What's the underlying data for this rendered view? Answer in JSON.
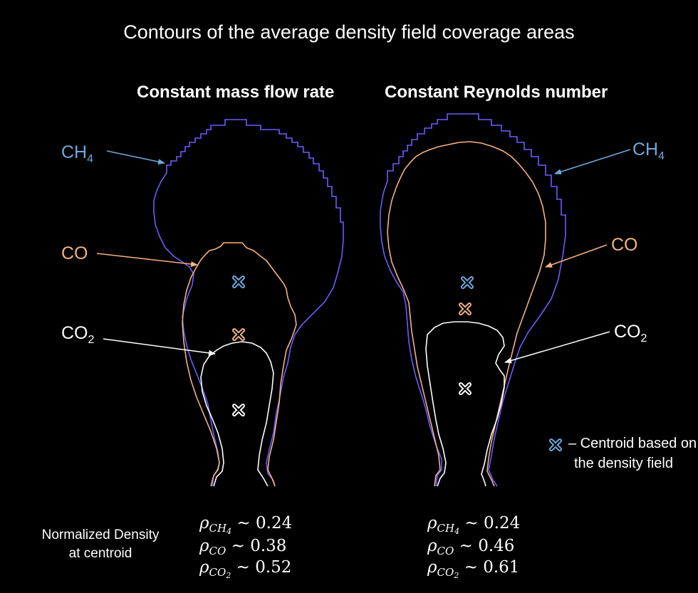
{
  "title": "Contours of the average density field coverage areas",
  "panels": [
    {
      "title": "Constant mass flow rate",
      "labels": {
        "ch4": "CH",
        "ch4_sub": "4",
        "co": "CO",
        "co2": "CO",
        "co2_sub": "2"
      },
      "densities": [
        {
          "sym": "ρ",
          "sub": "CH",
          "subsub": "4",
          "approx": "~",
          "value": "0.24"
        },
        {
          "sym": "ρ",
          "sub": "CO",
          "subsub": "",
          "approx": "~",
          "value": "0.38"
        },
        {
          "sym": "ρ",
          "sub": "CO",
          "subsub": "2",
          "approx": "~",
          "value": "0.52"
        }
      ]
    },
    {
      "title": "Constant Reynolds number",
      "labels": {
        "ch4": "CH",
        "ch4_sub": "4",
        "co": "CO",
        "co2": "CO",
        "co2_sub": "2"
      },
      "densities": [
        {
          "sym": "ρ",
          "sub": "CH",
          "subsub": "4",
          "approx": "~",
          "value": "0.24"
        },
        {
          "sym": "ρ",
          "sub": "CO",
          "subsub": "",
          "approx": "~",
          "value": "0.46"
        },
        {
          "sym": "ρ",
          "sub": "CO",
          "subsub": "2",
          "approx": "~",
          "value": "0.61"
        }
      ]
    }
  ],
  "normalized_label": {
    "line1": "Normalized Density",
    "line2": "at centroid"
  },
  "legend": {
    "line1": "– Centroid based on",
    "line2": "the density field",
    "icon": "cross-marker-icon"
  },
  "colors": {
    "ch4": "#6a5cff",
    "ch4_label": "#6fa8dc",
    "co": "#f4b183",
    "co2": "#ffffff",
    "background": "#000000"
  }
}
